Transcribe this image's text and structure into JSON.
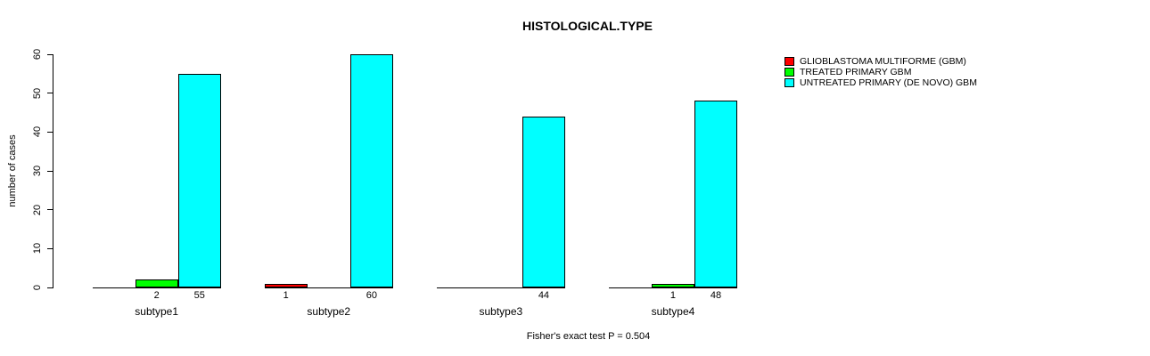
{
  "page": {
    "background": "#ffffff",
    "axis_color": "#000000",
    "text_color": "#000000"
  },
  "chart_data": {
    "type": "bar",
    "title": "HISTOLOGICAL.TYPE",
    "xlabel": "",
    "ylabel": "number of cases",
    "ylim": [
      0,
      60
    ],
    "yticks": [
      0,
      10,
      20,
      30,
      40,
      50,
      60
    ],
    "grid": false,
    "legend_position": "top-right",
    "categories": [
      "subtype1",
      "subtype2",
      "subtype3",
      "subtype4"
    ],
    "series": [
      {
        "name": "GLIOBLASTOMA MULTIFORME (GBM)",
        "color": "#ff0000",
        "values": [
          0,
          1,
          0,
          0
        ]
      },
      {
        "name": "TREATED PRIMARY GBM",
        "color": "#00ff00",
        "values": [
          2,
          0,
          0,
          1
        ]
      },
      {
        "name": "UNTREATED PRIMARY (DE NOVO) GBM",
        "color": "#00ffff",
        "values": [
          55,
          60,
          44,
          48
        ]
      }
    ],
    "value_labels": {
      "show": true,
      "hide_zero": true
    },
    "annotation": "Fisher's exact test P = 0.504"
  }
}
